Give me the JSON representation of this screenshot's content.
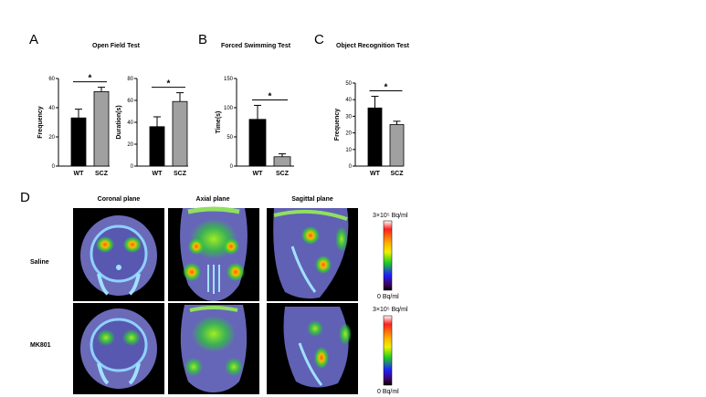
{
  "panels": {
    "A": "A",
    "B": "B",
    "C": "C",
    "D": "D"
  },
  "chart_data": [
    {
      "type": "bar",
      "panel": "A",
      "title": "Open Field Test",
      "categories": [
        "WT",
        "SCZ"
      ],
      "values": [
        33,
        51
      ],
      "errors": [
        6,
        3
      ],
      "ylabel": "Frequency",
      "ylim": [
        0,
        60
      ],
      "yticks": [
        0,
        20,
        40,
        60
      ],
      "significance": "*",
      "colors": [
        "#000000",
        "#a0a0a0"
      ]
    },
    {
      "type": "bar",
      "panel": "A",
      "title": "",
      "categories": [
        "WT",
        "SCZ"
      ],
      "values": [
        36,
        59
      ],
      "errors": [
        9,
        8
      ],
      "ylabel": "Duration(s)",
      "ylim": [
        0,
        80
      ],
      "yticks": [
        0,
        20,
        40,
        60,
        80
      ],
      "significance": "*",
      "colors": [
        "#000000",
        "#a0a0a0"
      ]
    },
    {
      "type": "bar",
      "panel": "B",
      "title": "Forced Swimming Test",
      "categories": [
        "WT",
        "SCZ"
      ],
      "values": [
        80,
        16
      ],
      "errors": [
        24,
        5
      ],
      "ylabel": "Time(s)",
      "ylim": [
        0,
        150
      ],
      "yticks": [
        0,
        50,
        100,
        150
      ],
      "significance": "*",
      "colors": [
        "#000000",
        "#a0a0a0"
      ]
    },
    {
      "type": "bar",
      "panel": "C",
      "title": "Object Recognition Test",
      "categories": [
        "WT",
        "SCZ"
      ],
      "values": [
        35,
        25
      ],
      "errors": [
        7,
        2
      ],
      "ylabel": "Frequency",
      "ylim": [
        0,
        50
      ],
      "yticks": [
        0,
        10,
        20,
        30,
        40,
        50
      ],
      "significance": "*",
      "colors": [
        "#000000",
        "#a0a0a0"
      ]
    }
  ],
  "imaging": {
    "columns": [
      "Coronal plane",
      "Axial plane",
      "Sagittal plane"
    ],
    "rows": [
      "Saline",
      "MK801"
    ],
    "scale_max": "3×10⁵ Bq/ml",
    "scale_min": "0 Bq/ml"
  }
}
